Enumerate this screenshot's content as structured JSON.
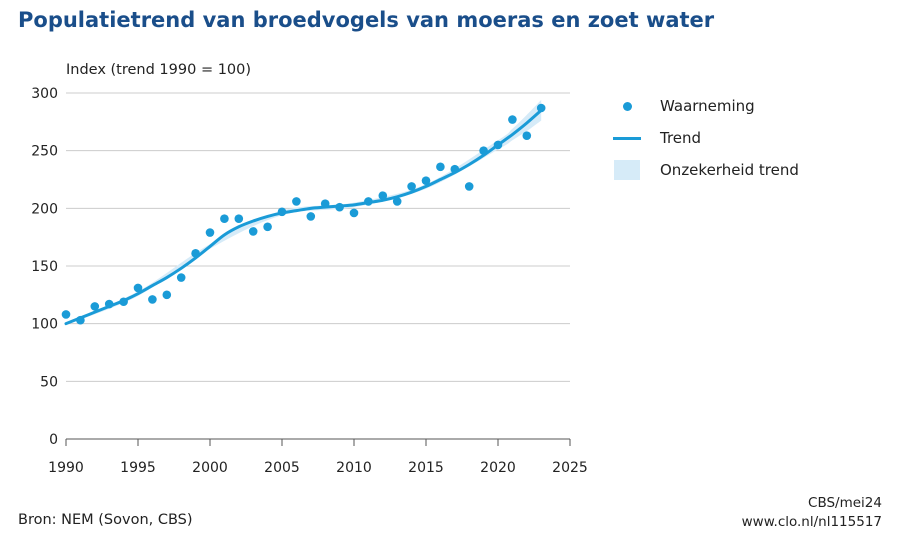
{
  "header": {
    "title": "Populatietrend van broedvogels van moeras en zoet water"
  },
  "legend": {
    "observation": "Waarneming",
    "trend": "Trend",
    "uncertainty": "Onzekerheid trend"
  },
  "footer": {
    "source": "Bron: NEM (Sovon, CBS)",
    "credit": "CBS/mei24",
    "url": "www.clo.nl/nl115517"
  },
  "colors": {
    "accent": "#1a9bd7",
    "band": "#d6ebf8",
    "title": "#1a4e8a",
    "grid": "#cccccc"
  },
  "chart_data": {
    "type": "scatter",
    "title": "Populatietrend van broedvogels van moeras en zoet water",
    "xlabel": "",
    "ylabel": "Index (trend 1990 = 100)",
    "xlim": [
      1990,
      2025
    ],
    "ylim": [
      0,
      300
    ],
    "xticks": [
      1990,
      1995,
      2000,
      2005,
      2010,
      2015,
      2020,
      2025
    ],
    "yticks": [
      0,
      50,
      100,
      150,
      200,
      250,
      300
    ],
    "grid": "horizontal",
    "legend_position": "right",
    "series": [
      {
        "name": "Waarneming",
        "type": "scatter",
        "x": [
          1990,
          1991,
          1992,
          1993,
          1994,
          1995,
          1996,
          1997,
          1998,
          1999,
          2000,
          2001,
          2002,
          2003,
          2004,
          2005,
          2006,
          2007,
          2008,
          2009,
          2010,
          2011,
          2012,
          2013,
          2014,
          2015,
          2016,
          2017,
          2018,
          2019,
          2020,
          2021,
          2022,
          2023
        ],
        "y": [
          108,
          103,
          115,
          117,
          119,
          131,
          121,
          125,
          140,
          161,
          179,
          191,
          191,
          180,
          184,
          197,
          206,
          193,
          204,
          201,
          196,
          206,
          211,
          206,
          219,
          224,
          236,
          234,
          219,
          250,
          255,
          277,
          263,
          287
        ]
      },
      {
        "name": "Trend",
        "type": "line",
        "x": [
          1990,
          1991,
          1992,
          1993,
          1994,
          1995,
          1996,
          1997,
          1998,
          1999,
          2000,
          2001,
          2002,
          2003,
          2004,
          2005,
          2006,
          2007,
          2008,
          2009,
          2010,
          2011,
          2012,
          2013,
          2014,
          2015,
          2016,
          2017,
          2018,
          2019,
          2020,
          2021,
          2022,
          2023
        ],
        "y": [
          100,
          105,
          110,
          115,
          120,
          126,
          133,
          140,
          148,
          157,
          167,
          177,
          184,
          189,
          193,
          196,
          198,
          200,
          201,
          202,
          203,
          205,
          207,
          210,
          214,
          219,
          225,
          231,
          238,
          246,
          255,
          264,
          274,
          285
        ]
      },
      {
        "name": "Onzekerheid trend",
        "type": "band",
        "x": [
          1990,
          1995,
          2000,
          2005,
          2010,
          2015,
          2020,
          2021,
          2022,
          2023
        ],
        "lower": [
          99,
          124,
          165,
          194,
          201,
          217,
          251,
          259,
          267,
          276
        ],
        "upper": [
          101,
          128,
          169,
          198,
          205,
          221,
          259,
          269,
          281,
          294
        ]
      }
    ]
  }
}
